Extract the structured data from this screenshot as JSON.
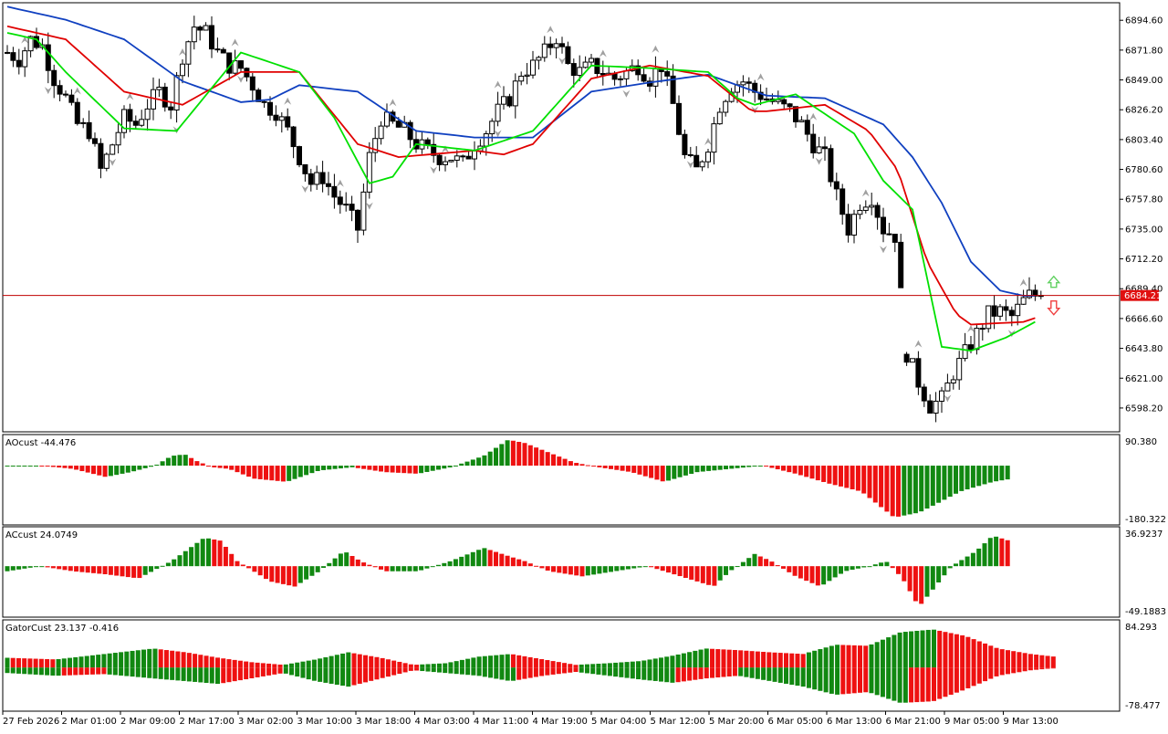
{
  "colors": {
    "background": "#ffffff",
    "candle_bull_fill": "#ffffff",
    "candle_bear_fill": "#000000",
    "candle_outline": "#000000",
    "alligator_jaw": "#1040c0",
    "alligator_teeth": "#e00000",
    "alligator_lips": "#00e000",
    "fractal": "#a0a0a0",
    "histogram_up": "#118811",
    "histogram_down": "#ee1111",
    "price_line": "#c00000",
    "price_tag_bg": "#e01010",
    "price_tag_text": "#ffffff",
    "signal_up": "#60d060",
    "signal_down": "#f04040"
  },
  "chart_data": [
    {
      "type": "candlestick",
      "pane": "main",
      "indicators": [
        "Alligator jaw",
        "Alligator teeth",
        "Alligator lips",
        "Fractals"
      ],
      "ylim": [
        6580,
        6908
      ],
      "y_ticks": [
        "6894.60",
        "6871.80",
        "6849.00",
        "6826.20",
        "6803.40",
        "6780.60",
        "6757.80",
        "6735.00",
        "6712.20",
        "6689.40",
        "6666.60",
        "6643.80",
        "6621.00",
        "6598.20"
      ],
      "current_price": "6684.21",
      "current_price_value": 6684.21,
      "x_labels": [
        "27 Feb 2026",
        "2 Mar 01:00",
        "2 Mar 09:00",
        "2 Mar 17:00",
        "3 Mar 02:00",
        "3 Mar 10:00",
        "3 Mar 18:00",
        "4 Mar 03:00",
        "4 Mar 11:00",
        "4 Mar 19:00",
        "5 Mar 04:00",
        "5 Mar 12:00",
        "5 Mar 20:00",
        "6 Mar 05:00",
        "6 Mar 13:00",
        "6 Mar 21:00",
        "9 Mar 05:00",
        "9 Mar 13:00"
      ],
      "bars": 178,
      "close_path": [
        [
          0,
          6870
        ],
        [
          4,
          6865
        ],
        [
          8,
          6880
        ],
        [
          12,
          6875
        ],
        [
          16,
          6850
        ],
        [
          20,
          6835
        ],
        [
          24,
          6815
        ],
        [
          28,
          6810
        ],
        [
          32,
          6780
        ],
        [
          36,
          6800
        ],
        [
          40,
          6820
        ],
        [
          44,
          6815
        ],
        [
          48,
          6830
        ],
        [
          52,
          6840
        ],
        [
          56,
          6830
        ],
        [
          60,
          6868
        ],
        [
          64,
          6890
        ],
        [
          68,
          6885
        ],
        [
          72,
          6870
        ],
        [
          76,
          6860
        ],
        [
          80,
          6858
        ],
        [
          84,
          6845
        ],
        [
          88,
          6830
        ],
        [
          92,
          6825
        ],
        [
          96,
          6810
        ],
        [
          100,
          6790
        ],
        [
          104,
          6770
        ],
        [
          108,
          6775
        ],
        [
          112,
          6760
        ],
        [
          116,
          6750
        ],
        [
          120,
          6735
        ],
        [
          124,
          6790
        ],
        [
          128,
          6820
        ],
        [
          132,
          6815
        ],
        [
          136,
          6810
        ],
        [
          140,
          6800
        ],
        [
          144,
          6795
        ],
        [
          148,
          6790
        ],
        [
          152,
          6790
        ],
        [
          156,
          6785
        ],
        [
          160,
          6800
        ],
        [
          164,
          6810
        ],
        [
          168,
          6825
        ],
        [
          172,
          6835
        ],
        [
          176,
          6855
        ],
        [
          180,
          6860
        ],
        [
          184,
          6870
        ],
        [
          188,
          6882
        ],
        [
          192,
          6860
        ],
        [
          196,
          6855
        ],
        [
          200,
          6860
        ],
        [
          204,
          6855
        ],
        [
          208,
          6850
        ],
        [
          212,
          6855
        ],
        [
          216,
          6860
        ],
        [
          220,
          6850
        ],
        [
          224,
          6860
        ],
        [
          228,
          6830
        ],
        [
          232,
          6790
        ],
        [
          236,
          6780
        ],
        [
          240,
          6800
        ],
        [
          244,
          6830
        ],
        [
          248,
          6845
        ],
        [
          252,
          6848
        ],
        [
          256,
          6840
        ],
        [
          260,
          6835
        ],
        [
          264,
          6830
        ],
        [
          268,
          6825
        ],
        [
          272,
          6815
        ],
        [
          276,
          6800
        ],
        [
          280,
          6790
        ],
        [
          284,
          6760
        ],
        [
          288,
          6735
        ],
        [
          292,
          6755
        ],
        [
          296,
          6760
        ],
        [
          300,
          6735
        ],
        [
          304,
          6730
        ],
        [
          308,
          6640
        ],
        [
          312,
          6618
        ],
        [
          316,
          6600
        ],
        [
          320,
          6605
        ],
        [
          324,
          6625
        ],
        [
          328,
          6640
        ],
        [
          332,
          6655
        ],
        [
          336,
          6670
        ],
        [
          340,
          6672
        ],
        [
          344,
          6668
        ],
        [
          348,
          6680
        ],
        [
          350,
          6684.21
        ]
      ],
      "jaw_path": [
        [
          0,
          6905
        ],
        [
          20,
          6895
        ],
        [
          40,
          6880
        ],
        [
          60,
          6848
        ],
        [
          80,
          6832
        ],
        [
          90,
          6834
        ],
        [
          100,
          6845
        ],
        [
          120,
          6840
        ],
        [
          140,
          6810
        ],
        [
          160,
          6805
        ],
        [
          180,
          6805
        ],
        [
          200,
          6840
        ],
        [
          220,
          6847
        ],
        [
          240,
          6853
        ],
        [
          260,
          6837
        ],
        [
          280,
          6835
        ],
        [
          300,
          6815
        ],
        [
          310,
          6790
        ],
        [
          320,
          6755
        ],
        [
          330,
          6710
        ],
        [
          340,
          6688
        ],
        [
          348,
          6684
        ],
        [
          352,
          6684
        ]
      ],
      "teeth_path": [
        [
          0,
          6890
        ],
        [
          20,
          6880
        ],
        [
          40,
          6840
        ],
        [
          60,
          6830
        ],
        [
          80,
          6855
        ],
        [
          100,
          6855
        ],
        [
          120,
          6800
        ],
        [
          134,
          6790
        ],
        [
          160,
          6795
        ],
        [
          170,
          6792
        ],
        [
          180,
          6800
        ],
        [
          200,
          6850
        ],
        [
          220,
          6860
        ],
        [
          240,
          6852
        ],
        [
          255,
          6825
        ],
        [
          260,
          6825
        ],
        [
          280,
          6830
        ],
        [
          295,
          6810
        ],
        [
          305,
          6780
        ],
        [
          315,
          6710
        ],
        [
          325,
          6670
        ],
        [
          330,
          6662
        ],
        [
          348,
          6664
        ],
        [
          352,
          6667
        ]
      ],
      "lips_path": [
        [
          0,
          6885
        ],
        [
          10,
          6880
        ],
        [
          20,
          6855
        ],
        [
          40,
          6812
        ],
        [
          58,
          6810
        ],
        [
          80,
          6870
        ],
        [
          100,
          6855
        ],
        [
          112,
          6820
        ],
        [
          124,
          6770
        ],
        [
          132,
          6775
        ],
        [
          140,
          6800
        ],
        [
          160,
          6795
        ],
        [
          180,
          6810
        ],
        [
          200,
          6860
        ],
        [
          220,
          6858
        ],
        [
          240,
          6855
        ],
        [
          250,
          6835
        ],
        [
          256,
          6830
        ],
        [
          270,
          6838
        ],
        [
          290,
          6808
        ],
        [
          300,
          6772
        ],
        [
          310,
          6750
        ],
        [
          320,
          6645
        ],
        [
          330,
          6642
        ],
        [
          342,
          6652
        ],
        [
          352,
          6664
        ]
      ]
    },
    {
      "type": "histogram",
      "pane": "AO",
      "label": "AOcust -44.476",
      "ylim": [
        -180.322,
        90.38
      ],
      "y_ticks": [
        "90.380",
        "-180.322"
      ],
      "path": [
        [
          0,
          0
        ],
        [
          20,
          0
        ],
        [
          40,
          -10
        ],
        [
          60,
          -35
        ],
        [
          75,
          -20
        ],
        [
          90,
          0
        ],
        [
          100,
          30
        ],
        [
          108,
          35
        ],
        [
          115,
          15
        ],
        [
          125,
          -5
        ],
        [
          135,
          -10
        ],
        [
          150,
          -40
        ],
        [
          170,
          -50
        ],
        [
          190,
          -15
        ],
        [
          210,
          -5
        ],
        [
          230,
          -20
        ],
        [
          250,
          -25
        ],
        [
          270,
          -5
        ],
        [
          290,
          30
        ],
        [
          305,
          80
        ],
        [
          315,
          70
        ],
        [
          330,
          40
        ],
        [
          345,
          10
        ],
        [
          360,
          -5
        ],
        [
          380,
          -20
        ],
        [
          400,
          -50
        ],
        [
          420,
          -20
        ],
        [
          440,
          -10
        ],
        [
          460,
          0
        ],
        [
          480,
          -25
        ],
        [
          500,
          -55
        ],
        [
          520,
          -80
        ],
        [
          540,
          -160
        ],
        [
          555,
          -145
        ],
        [
          565,
          -120
        ],
        [
          580,
          -80
        ],
        [
          600,
          -50
        ],
        [
          612,
          -40
        ]
      ],
      "last_value": -44.476
    },
    {
      "type": "histogram",
      "pane": "AC",
      "label": "ACcust 24.0749",
      "ylim": [
        -49.1883,
        36.9237
      ],
      "y_ticks": [
        "36.9237",
        "-49.1883"
      ],
      "path": [
        [
          0,
          -5
        ],
        [
          20,
          0
        ],
        [
          40,
          -5
        ],
        [
          60,
          -8
        ],
        [
          80,
          -12
        ],
        [
          100,
          5
        ],
        [
          120,
          28
        ],
        [
          130,
          25
        ],
        [
          140,
          5
        ],
        [
          150,
          -5
        ],
        [
          160,
          -15
        ],
        [
          175,
          -20
        ],
        [
          190,
          -5
        ],
        [
          205,
          15
        ],
        [
          215,
          5
        ],
        [
          230,
          -5
        ],
        [
          250,
          -5
        ],
        [
          270,
          5
        ],
        [
          290,
          18
        ],
        [
          305,
          10
        ],
        [
          315,
          5
        ],
        [
          330,
          -5
        ],
        [
          350,
          -10
        ],
        [
          370,
          -5
        ],
        [
          390,
          0
        ],
        [
          410,
          -10
        ],
        [
          430,
          -20
        ],
        [
          440,
          -5
        ],
        [
          455,
          12
        ],
        [
          465,
          5
        ],
        [
          480,
          -10
        ],
        [
          495,
          -20
        ],
        [
          510,
          -5
        ],
        [
          525,
          0
        ],
        [
          535,
          5
        ],
        [
          545,
          -12
        ],
        [
          555,
          -40
        ],
        [
          565,
          -20
        ],
        [
          575,
          0
        ],
        [
          590,
          15
        ],
        [
          600,
          30
        ],
        [
          612,
          24
        ]
      ],
      "last_value": 24.0749
    },
    {
      "type": "histogram",
      "pane": "Gator",
      "label": "GatorCust 23.137 -0.416",
      "ylim": [
        -78.477,
        84.293
      ],
      "y_ticks": [
        "84.293",
        "-78.477"
      ],
      "upper_path": [
        [
          0,
          18
        ],
        [
          30,
          15
        ],
        [
          60,
          25
        ],
        [
          90,
          35
        ],
        [
          110,
          28
        ],
        [
          130,
          18
        ],
        [
          150,
          10
        ],
        [
          170,
          5
        ],
        [
          190,
          15
        ],
        [
          210,
          28
        ],
        [
          230,
          18
        ],
        [
          250,
          5
        ],
        [
          270,
          8
        ],
        [
          290,
          20
        ],
        [
          310,
          25
        ],
        [
          330,
          15
        ],
        [
          350,
          5
        ],
        [
          370,
          8
        ],
        [
          390,
          12
        ],
        [
          410,
          22
        ],
        [
          430,
          35
        ],
        [
          450,
          32
        ],
        [
          470,
          28
        ],
        [
          490,
          25
        ],
        [
          510,
          42
        ],
        [
          530,
          40
        ],
        [
          550,
          65
        ],
        [
          570,
          70
        ],
        [
          590,
          58
        ],
        [
          610,
          35
        ],
        [
          630,
          25
        ],
        [
          645,
          20
        ]
      ],
      "lower_path": [
        [
          0,
          -10
        ],
        [
          30,
          -15
        ],
        [
          60,
          -12
        ],
        [
          90,
          -20
        ],
        [
          110,
          -25
        ],
        [
          130,
          -30
        ],
        [
          150,
          -20
        ],
        [
          170,
          -10
        ],
        [
          190,
          -25
        ],
        [
          210,
          -35
        ],
        [
          230,
          -20
        ],
        [
          250,
          -5
        ],
        [
          270,
          -10
        ],
        [
          290,
          -15
        ],
        [
          310,
          -25
        ],
        [
          330,
          -15
        ],
        [
          350,
          -8
        ],
        [
          370,
          -15
        ],
        [
          390,
          -22
        ],
        [
          410,
          -28
        ],
        [
          430,
          -20
        ],
        [
          450,
          -15
        ],
        [
          470,
          -25
        ],
        [
          490,
          -35
        ],
        [
          510,
          -50
        ],
        [
          530,
          -45
        ],
        [
          550,
          -65
        ],
        [
          570,
          -62
        ],
        [
          590,
          -40
        ],
        [
          610,
          -15
        ],
        [
          630,
          -5
        ],
        [
          645,
          -1
        ]
      ],
      "last_upper": 23.137,
      "last_lower": -0.416
    }
  ]
}
